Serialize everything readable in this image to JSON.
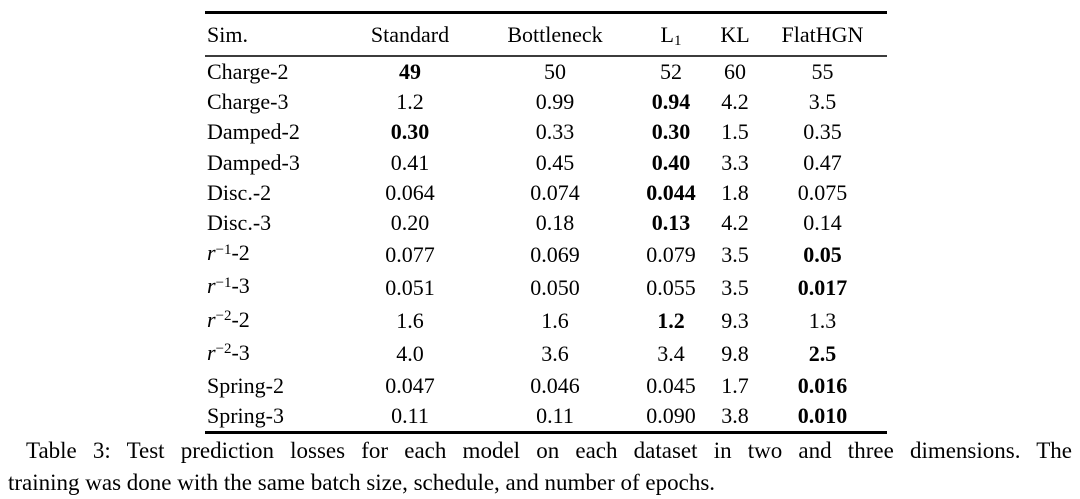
{
  "colors": {
    "background": "#ffffff",
    "text": "#000000",
    "thick_rule": "#000000",
    "header_rule": "#3c3c3c"
  },
  "table": {
    "headers": [
      {
        "text": "Sim."
      },
      {
        "text": "Standard"
      },
      {
        "text": "Bottleneck"
      },
      {
        "text": "L",
        "sub": "1"
      },
      {
        "text": "KL"
      },
      {
        "text": "FlatHGN"
      }
    ],
    "rows": [
      {
        "label": {
          "text": "Charge-2"
        },
        "values": [
          "49",
          "50",
          "52",
          "60",
          "55"
        ],
        "bold": [
          true,
          false,
          false,
          false,
          false
        ]
      },
      {
        "label": {
          "text": "Charge-3"
        },
        "values": [
          "1.2",
          "0.99",
          "0.94",
          "4.2",
          "3.5"
        ],
        "bold": [
          false,
          false,
          true,
          false,
          false
        ]
      },
      {
        "label": {
          "text": "Damped-2"
        },
        "values": [
          "0.30",
          "0.33",
          "0.30",
          "1.5",
          "0.35"
        ],
        "bold": [
          true,
          false,
          true,
          false,
          false
        ]
      },
      {
        "label": {
          "text": "Damped-3"
        },
        "values": [
          "0.41",
          "0.45",
          "0.40",
          "3.3",
          "0.47"
        ],
        "bold": [
          false,
          false,
          true,
          false,
          false
        ]
      },
      {
        "label": {
          "text": "Disc.-2"
        },
        "values": [
          "0.064",
          "0.074",
          "0.044",
          "1.8",
          "0.075"
        ],
        "bold": [
          false,
          false,
          true,
          false,
          false
        ]
      },
      {
        "label": {
          "text": "Disc.-3"
        },
        "values": [
          "0.20",
          "0.18",
          "0.13",
          "4.2",
          "0.14"
        ],
        "bold": [
          false,
          false,
          true,
          false,
          false
        ]
      },
      {
        "label": {
          "base": "r",
          "sup": "−1",
          "rest": "-2"
        },
        "values": [
          "0.077",
          "0.069",
          "0.079",
          "3.5",
          "0.05"
        ],
        "bold": [
          false,
          false,
          false,
          false,
          true
        ]
      },
      {
        "label": {
          "base": "r",
          "sup": "−1",
          "rest": "-3"
        },
        "values": [
          "0.051",
          "0.050",
          "0.055",
          "3.5",
          "0.017"
        ],
        "bold": [
          false,
          false,
          false,
          false,
          true
        ]
      },
      {
        "label": {
          "base": "r",
          "sup": "−2",
          "rest": "-2"
        },
        "values": [
          "1.6",
          "1.6",
          "1.2",
          "9.3",
          "1.3"
        ],
        "bold": [
          false,
          false,
          true,
          false,
          false
        ]
      },
      {
        "label": {
          "base": "r",
          "sup": "−2",
          "rest": "-3"
        },
        "values": [
          "4.0",
          "3.6",
          "3.4",
          "9.8",
          "2.5"
        ],
        "bold": [
          false,
          false,
          false,
          false,
          true
        ]
      },
      {
        "label": {
          "text": "Spring-2"
        },
        "values": [
          "0.047",
          "0.046",
          "0.045",
          "1.7",
          "0.016"
        ],
        "bold": [
          false,
          false,
          false,
          false,
          true
        ]
      },
      {
        "label": {
          "text": "Spring-3"
        },
        "values": [
          "0.11",
          "0.11",
          "0.090",
          "3.8",
          "0.010"
        ],
        "bold": [
          false,
          false,
          false,
          false,
          true
        ]
      }
    ]
  },
  "caption": {
    "line1": "Table 3: Test prediction losses for each model on each dataset in two and three dimensions. The",
    "line2": "training was done with the same batch size, schedule, and number of epochs.",
    "full_text": "Table 3: Test prediction losses for each model on each dataset in two and three dimensions. The training was done with the same batch size, schedule, and number of epochs."
  }
}
